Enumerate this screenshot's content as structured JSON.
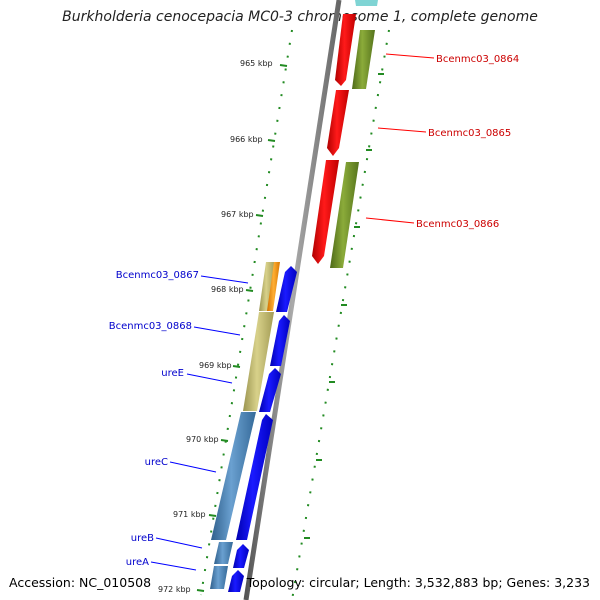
{
  "title": "Burkholderia cenocepacia MC0-3 chromosome 1, complete genome",
  "footer": {
    "accession": "Accession: NC_010508",
    "topology": "Topology: circular; Length: 3,532,883 bp; Genes: 3,233"
  },
  "scale": {
    "kbp_labels": [
      "965 kbp",
      "966 kbp",
      "967 kbp",
      "968 kbp",
      "969 kbp",
      "970 kbp",
      "971 kbp",
      "972 kbp"
    ]
  },
  "genes_forward": [
    {
      "label": "Bcenmc03_0864",
      "color": "#cc0000"
    },
    {
      "label": "Bcenmc03_0865",
      "color": "#cc0000"
    },
    {
      "label": "Bcenmc03_0866",
      "color": "#cc0000"
    }
  ],
  "genes_reverse": [
    {
      "label": "Bcenmc03_0867",
      "color": "#0000cc"
    },
    {
      "label": "Bcenmc03_0868",
      "color": "#0000cc"
    },
    {
      "label": "ureE",
      "color": "#0000cc"
    },
    {
      "label": "ureC",
      "color": "#0000cc"
    },
    {
      "label": "ureB",
      "color": "#0000cc"
    },
    {
      "label": "ureA",
      "color": "#0000cc"
    }
  ],
  "colors": {
    "forward_gene": "#ff0000",
    "reverse_gene": "#0000ff",
    "cog_olive": "#6b8e23",
    "cog_khaki": "#bdb76b",
    "cog_steelblue": "#4682b4",
    "cog_orange": "#ff9900",
    "tick_green": "#228b22",
    "backbone": "#888888"
  }
}
